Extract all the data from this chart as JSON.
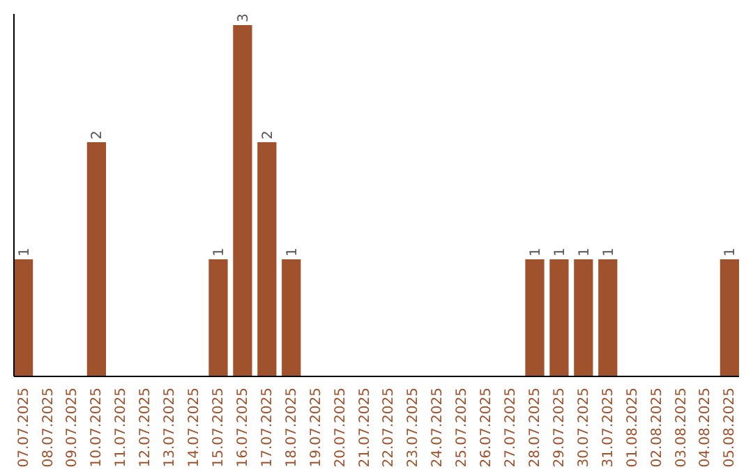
{
  "chart_data": {
    "type": "bar",
    "categories": [
      "07.07.2025",
      "08.07.2025",
      "09.07.2025",
      "10.07.2025",
      "11.07.2025",
      "12.07.2025",
      "13.07.2025",
      "14.07.2025",
      "15.07.2025",
      "16.07.2025",
      "17.07.2025",
      "18.07.2025",
      "19.07.2025",
      "20.07.2025",
      "21.07.2025",
      "22.07.2025",
      "23.07.2025",
      "24.07.2025",
      "25.07.2025",
      "26.07.2025",
      "27.07.2025",
      "28.07.2025",
      "29.07.2025",
      "30.07.2025",
      "31.07.2025",
      "01.08.2025",
      "02.08.2025",
      "03.08.2025",
      "04.08.2025",
      "05.08.2025"
    ],
    "values": [
      1,
      0,
      0,
      2,
      0,
      0,
      0,
      0,
      1,
      3,
      2,
      1,
      0,
      0,
      0,
      0,
      0,
      0,
      0,
      0,
      0,
      1,
      1,
      1,
      1,
      0,
      0,
      0,
      0,
      1
    ],
    "color": "#a0522d",
    "value_labels": [
      "1",
      null,
      null,
      "2",
      null,
      null,
      null,
      null,
      "1",
      "3",
      "2",
      "1",
      null,
      null,
      null,
      null,
      null,
      null,
      null,
      null,
      null,
      "1",
      "1",
      "1",
      "1",
      null,
      null,
      null,
      null,
      "1"
    ]
  }
}
